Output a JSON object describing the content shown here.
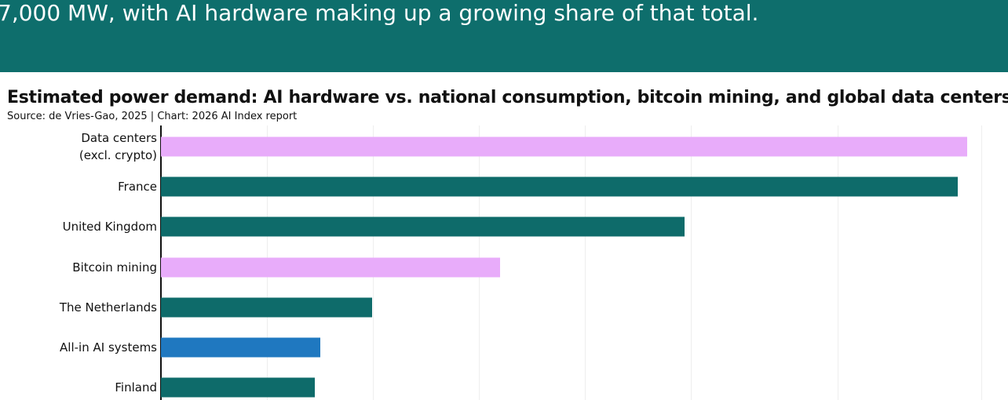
{
  "header": {
    "text": "7,000 MW, with AI hardware making up a growing share of that total."
  },
  "chart_data": {
    "type": "hbar",
    "title": "Estimated power demand: AI hardware  vs. national consumption, bitcoin mining, and global data centers",
    "subtitle": "Source: de Vries-Gao, 2025 | Chart: 2026 AI Index report",
    "categories": [
      "Data centers\n(excl. crypto)",
      "France",
      "United Kingdom",
      "Bitcoin mining",
      "The Netherlands",
      "All-in AI systems",
      "Finland"
    ],
    "values": [
      51600,
      51000,
      33500,
      21700,
      13500,
      10200,
      9850
    ],
    "colors": [
      "#e8acfa",
      "#0e6b6a",
      "#0e6b6a",
      "#e8acfa",
      "#0e6b6a",
      "#1f78c0",
      "#0e6b6a"
    ],
    "xlim": [
      0,
      54200
    ],
    "grid": true
  }
}
